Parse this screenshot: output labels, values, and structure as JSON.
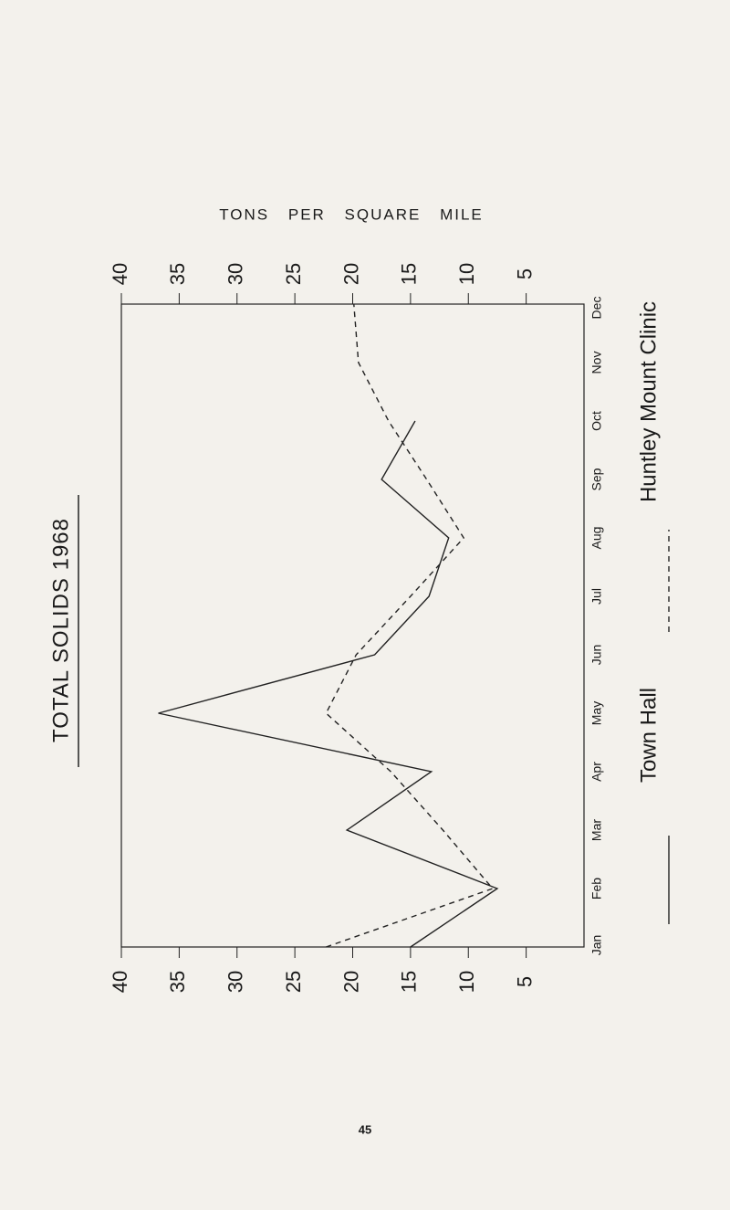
{
  "chart_data": {
    "type": "line",
    "title": "TOTAL SOLIDS 1968",
    "x_axis_label": "TONS PER SQUARE MILE",
    "categories": [
      "Jan",
      "Feb",
      "Mar",
      "Apr",
      "May",
      "Jun",
      "Jul",
      "Aug",
      "Sep",
      "Oct",
      "Nov",
      "Dec"
    ],
    "series": [
      {
        "name": "Town Hall",
        "color": "#222222",
        "dash": false,
        "values": [
          15,
          7.5,
          20.5,
          13.2,
          36.8,
          18.1,
          13.4,
          11.7,
          17.5,
          14.6,
          null,
          null
        ]
      },
      {
        "name": "Huntley Mount Clinic",
        "color": "#222222",
        "dash": true,
        "values": [
          22.3,
          7.9,
          12.2,
          16.7,
          22.3,
          19.7,
          15.0,
          10.4,
          13.6,
          16.9,
          19.5,
          19.9
        ]
      }
    ],
    "xlim": [
      40,
      0
    ],
    "xticks": [
      40,
      35,
      30,
      25,
      20,
      15,
      10,
      5
    ],
    "page_number": "45"
  }
}
